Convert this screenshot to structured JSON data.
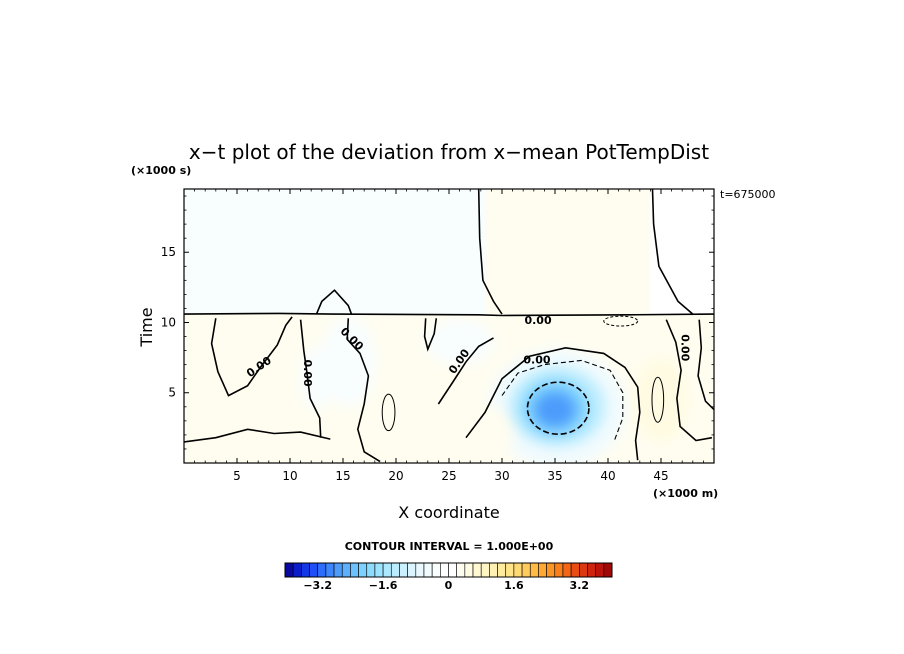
{
  "chart_data": {
    "type": "heatmap",
    "title": "x−t plot of the deviation from x−mean PotTempDist",
    "xlabel": "X coordinate",
    "ylabel": "Time",
    "x_unit": "(×1000 m)",
    "y_unit": "(×1000 s)",
    "time_stamp": "t=675000",
    "xlim": [
      0,
      50
    ],
    "ylim": [
      0,
      19.5
    ],
    "x_ticks": [
      5,
      10,
      15,
      20,
      25,
      30,
      35,
      40,
      45
    ],
    "y_ticks": [
      5,
      10,
      15
    ],
    "grid": false,
    "contour_interval_text": "CONTOUR INTERVAL = 1.000E+00",
    "contour_labels": [
      {
        "x": 7.1,
        "y": 6.8,
        "text": "0.00",
        "rotate": -35
      },
      {
        "x": 11.6,
        "y": 6.4,
        "text": "0.00",
        "rotate": 90
      },
      {
        "x": 15.8,
        "y": 8.8,
        "text": "0.00",
        "rotate": 45
      },
      {
        "x": 26.0,
        "y": 7.2,
        "text": "0.00",
        "rotate": -55
      },
      {
        "x": 33.4,
        "y": 10.1,
        "text": "0.00",
        "rotate": 0
      },
      {
        "x": 33.3,
        "y": 7.3,
        "text": "0.00",
        "rotate": 0
      },
      {
        "x": 47.2,
        "y": 8.2,
        "text": "0.00",
        "rotate": 90
      }
    ],
    "features": [
      {
        "shape": "ellipse",
        "cx": 35.2,
        "cy": 3.9,
        "rx": 6.5,
        "ry": 4.2,
        "value": -0.6
      },
      {
        "shape": "ellipse",
        "cx": 35.2,
        "cy": 4.0,
        "rx": 4.6,
        "ry": 2.9,
        "value": -1.4
      },
      {
        "shape": "ellipse",
        "cx": 35.0,
        "cy": 3.9,
        "rx": 3.2,
        "ry": 2.1,
        "value": -2.2
      },
      {
        "shape": "ellipse",
        "cx": 35.0,
        "cy": 3.8,
        "rx": 2.0,
        "ry": 1.3,
        "value": -2.8
      },
      {
        "shape": "ellipse",
        "cx": 15.5,
        "cy": 7.2,
        "rx": 2.6,
        "ry": 3.2,
        "value": -0.4
      },
      {
        "shape": "ellipse",
        "cx": 12.5,
        "cy": 6.0,
        "rx": 1.6,
        "ry": 2.2,
        "value": -0.3
      },
      {
        "shape": "ellipse",
        "cx": 26.0,
        "cy": 8.6,
        "rx": 3.2,
        "ry": 1.6,
        "value": -0.3
      },
      {
        "shape": "ellipse",
        "cx": 45.0,
        "cy": 4.5,
        "rx": 2.6,
        "ry": 3.0,
        "value": 0.4
      },
      {
        "shape": "ellipse",
        "cx": 21.0,
        "cy": 3.5,
        "rx": 2.8,
        "ry": 3.0,
        "value": 0.3
      },
      {
        "shape": "ellipse",
        "cx": 4.0,
        "cy": 2.5,
        "rx": 4.0,
        "ry": 2.2,
        "value": 0.2
      },
      {
        "shape": "ellipse",
        "cx": 28.0,
        "cy": 2.2,
        "rx": 3.2,
        "ry": 2.0,
        "value": 0.3
      }
    ],
    "colorbar": {
      "tick_labels": [
        "−3.2",
        "−1.6",
        "0",
        "1.6",
        "3.2"
      ],
      "tick_values": [
        -3.2,
        -1.6,
        0,
        1.6,
        3.2
      ],
      "range": [
        -4.0,
        4.0
      ],
      "n_boxes": 40,
      "colors": [
        "#0a0aa0",
        "#0c1ec8",
        "#1438e6",
        "#1e50f5",
        "#2e6cfa",
        "#3d86fb",
        "#4d9cfc",
        "#5cb0fd",
        "#6cc2fd",
        "#7cd2fe",
        "#8cdcfe",
        "#9ce4fe",
        "#ace9fe",
        "#bcedfe",
        "#ccf1fe",
        "#dbf5fe",
        "#e8f8fe",
        "#f1fbfe",
        "#f8fdfe",
        "#ffffff",
        "#ffffff",
        "#fffdf0",
        "#fffbe2",
        "#fff8d3",
        "#fff5c4",
        "#fff1b3",
        "#ffec9f",
        "#ffe48a",
        "#ffd974",
        "#ffcb5c",
        "#ffbb46",
        "#ffa934",
        "#fd9526",
        "#f97e1c",
        "#f26616",
        "#e84e12",
        "#dc380f",
        "#ce240d",
        "#bc140b",
        "#a30808"
      ]
    }
  }
}
